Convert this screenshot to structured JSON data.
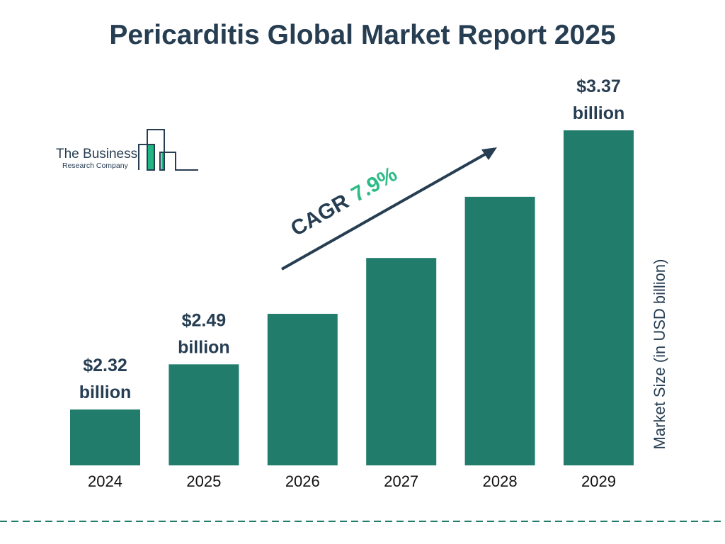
{
  "title": "Pericarditis Global Market Report 2025",
  "logo": {
    "line1": "The Business",
    "line2": "Research Company"
  },
  "colors": {
    "bar": "#217c6b",
    "text": "#263d52",
    "accent": "#2dbb86",
    "logo_fill": "#22b684"
  },
  "chart_data": {
    "type": "bar",
    "title": "Pericarditis Global Market Report 2025",
    "categories": [
      "2024",
      "2025",
      "2026",
      "2027",
      "2028",
      "2029"
    ],
    "values": [
      2.32,
      2.49,
      2.68,
      2.89,
      3.12,
      3.37
    ],
    "data_labels": [
      {
        "index": 0,
        "value": "$2.32",
        "unit": "billion"
      },
      {
        "index": 1,
        "value": "$2.49",
        "unit": "billion"
      },
      {
        "index": 5,
        "value": "$3.37",
        "unit": "billion"
      }
    ],
    "ylabel": "Market Size (in USD billion)",
    "xlabel": "",
    "grid": false,
    "annotation": {
      "label": "CAGR",
      "value": "7.9%"
    }
  }
}
